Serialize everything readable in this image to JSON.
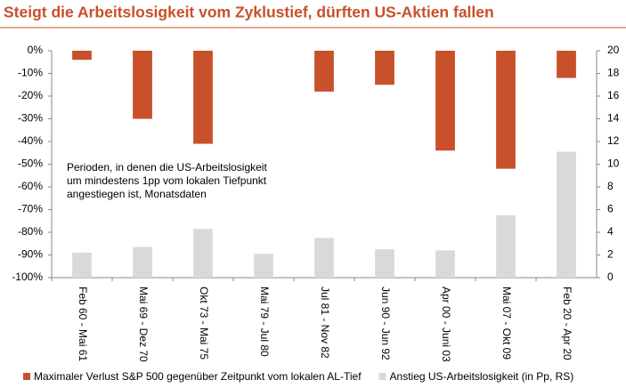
{
  "chart_data": {
    "type": "bar",
    "title": "Steigt die Arbeitslosigkeit vom Zyklustief, dürften US-Aktien fallen",
    "annotation": [
      "Perioden, in denen die US-Arbeitslosigkeit",
      "um mindestens 1pp vom lokalen Tiefpunkt",
      "angestiegen ist, Monatsdaten"
    ],
    "categories": [
      "Feb 60 - Mai 61",
      "Mai 69 - Dez 70",
      "Okt 73 - Mai 75",
      "Mai 79 - Jul 80",
      "Jul 81 - Nov 82",
      "Jun 90 - Jun 92",
      "Apr 00 - Juni 03",
      "Mai 07 - Okt 09",
      "Feb 20 - Apr 20"
    ],
    "series": [
      {
        "name": "Maximaler Verlust S&P 500 gegenüber Zeitpunkt vom lokalen AL-Tief",
        "color": "#c8502a",
        "axis": "y",
        "values": [
          -4,
          -30,
          -41,
          null,
          -18,
          -15,
          -44,
          -52,
          -12
        ]
      },
      {
        "name": "Anstieg US-Arbeitslosigkeit (in Pp, RS)",
        "color": "#d9d9d9",
        "axis": "y2",
        "values": [
          2.2,
          2.7,
          4.3,
          2.1,
          3.5,
          2.5,
          2.4,
          5.5,
          11.1
        ]
      }
    ],
    "ylim": [
      -100,
      0
    ],
    "yticks": [
      {
        "value": 0,
        "label": "0%"
      },
      {
        "value": -10,
        "label": "-10%"
      },
      {
        "value": -20,
        "label": "-20%"
      },
      {
        "value": -30,
        "label": "-30%"
      },
      {
        "value": -40,
        "label": "-40%"
      },
      {
        "value": -50,
        "label": "-50%"
      },
      {
        "value": -60,
        "label": "-60%"
      },
      {
        "value": -70,
        "label": "-70%"
      },
      {
        "value": -80,
        "label": "-80%"
      },
      {
        "value": -90,
        "label": "-90%"
      },
      {
        "value": -100,
        "label": "-100%"
      }
    ],
    "y2lim": [
      0,
      20
    ],
    "y2ticks": [
      0,
      2,
      4,
      6,
      8,
      10,
      12,
      14,
      16,
      18,
      20
    ],
    "grid": false
  }
}
